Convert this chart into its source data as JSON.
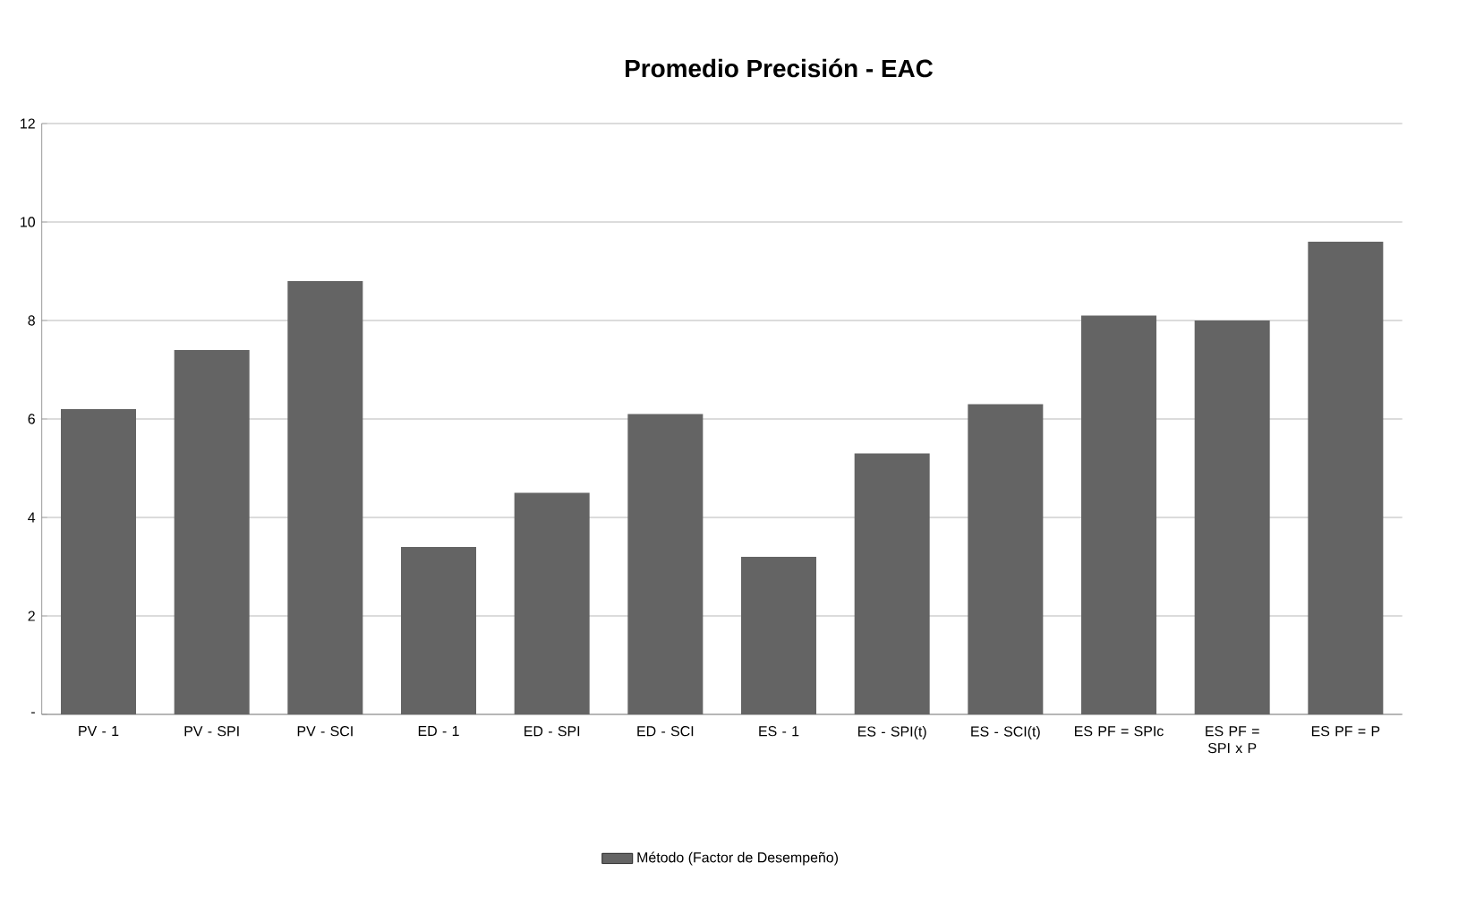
{
  "chart_data": {
    "type": "bar",
    "title": "Promedio Precisión - EAC",
    "categories": [
      "PV - 1",
      "PV - SPI",
      "PV - SCI",
      "ED - 1",
      "ED - SPI",
      "ED - SCI",
      "ES - 1",
      "ES - SPI(t)",
      "ES - SCI(t)",
      "ES PF = SPIc",
      "ES PF = SPI x P",
      "ES PF = P"
    ],
    "series": [
      {
        "name": "Método (Factor de Desempeño)",
        "color": "#646464",
        "values": [
          6.2,
          7.4,
          8.8,
          3.4,
          4.5,
          6.1,
          3.2,
          5.3,
          6.3,
          8.1,
          8.0,
          9.6
        ]
      }
    ],
    "ylim": [
      0,
      12
    ],
    "yticks": [
      {
        "value": 0,
        "label": "-"
      },
      2,
      4,
      6,
      8,
      10,
      12
    ],
    "grid": "y",
    "legend": "bottom"
  }
}
